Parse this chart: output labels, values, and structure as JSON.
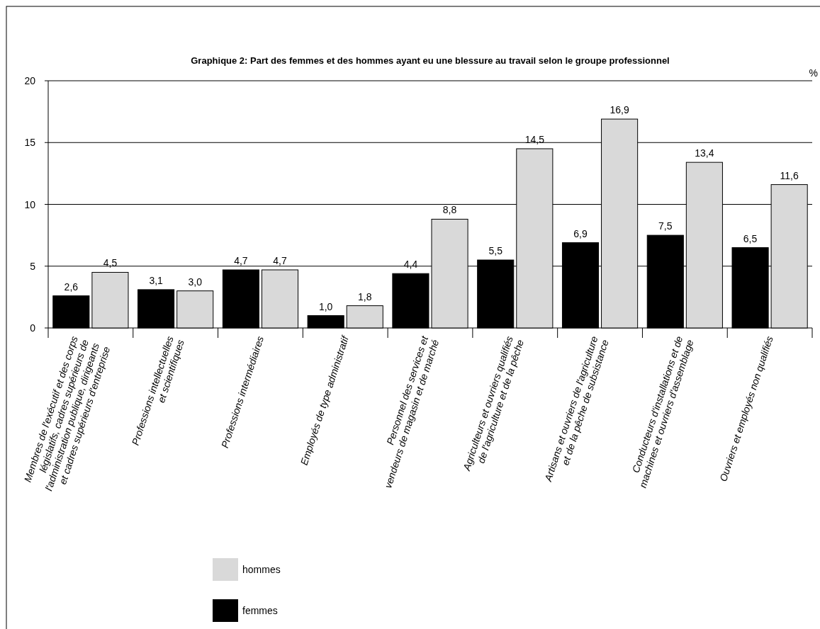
{
  "chart_data": {
    "type": "bar",
    "title": "Graphique 2: Part des femmes et des hommes ayant eu une blessure au travail selon le groupe professionnel",
    "ylabel": "%",
    "categories": [
      "Membres de l'exécutif et des corps\nlégislatifs, cadres supérieurs de\nl'administration publique, dirigeants\net cadres supérieurs d'entreprise",
      "Professions intellectuelles\net scientifiques",
      "Professions intermédiaires",
      "Employés de type administratif",
      "Personnel des services et\nvendeurs de magasin et de marché",
      "Agriculteurs et ouvriers qualifiés\nde l'agriculture et de la pêche",
      "Artisans et ouvriers de l'agriculture\net de la pêche de subsistance",
      "Conducteurs d'installations et de\nmachines et ouvriers d'assemblage",
      "Ouvriers et employés non qualifiés"
    ],
    "series": [
      {
        "name": "femmes",
        "color": "#000000",
        "values": [
          2.6,
          3.1,
          4.7,
          1.0,
          4.4,
          5.5,
          6.9,
          7.5,
          6.5
        ],
        "value_labels": [
          "2,6",
          "3,1",
          "4,7",
          "1,0",
          "4,4",
          "5,5",
          "6,9",
          "7,5",
          "6,5"
        ]
      },
      {
        "name": "hommes",
        "color": "#d9d9d9",
        "values": [
          4.5,
          3.0,
          4.7,
          1.8,
          8.8,
          14.5,
          16.9,
          13.4,
          11.6
        ],
        "value_labels": [
          "4,5",
          "3,0",
          "4,7",
          "1,8",
          "8,8",
          "14,5",
          "16,9",
          "13,4",
          "11,6"
        ]
      }
    ],
    "ylim": [
      0,
      20
    ],
    "yticks": [
      0,
      5,
      10,
      15,
      20
    ],
    "grid": "y",
    "legend": "bottom"
  }
}
